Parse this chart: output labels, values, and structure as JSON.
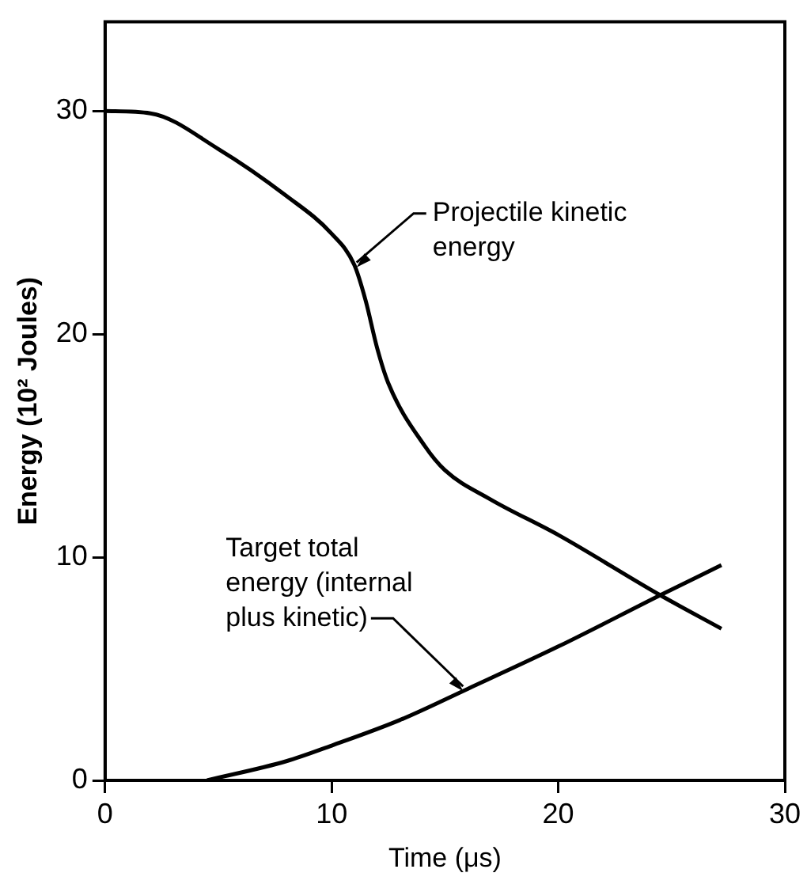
{
  "chart_data": {
    "type": "line",
    "xlabel": "Time (μs)",
    "ylabel": "Energy (10² Joules)",
    "xlim": [
      0,
      30
    ],
    "xticks": [
      0,
      10,
      20,
      30
    ],
    "ylim": [
      0,
      34
    ],
    "yticks": [
      0,
      10,
      20,
      30
    ],
    "grid": false,
    "legend": false,
    "marker": "none",
    "line_style": "solid",
    "series": [
      {
        "color": "#000000",
        "x": [
          0,
          2,
          5,
          8,
          10,
          11,
          11.5,
          12,
          12.5,
          14.1,
          15,
          17,
          20,
          24.5,
          27.2
        ],
        "values": [
          30,
          29.9,
          28.3,
          26.2,
          24.5,
          23.1,
          21.5,
          19.4,
          17.8,
          15.0,
          13.9,
          12.6,
          11.0,
          8.3,
          6.8
        ]
      },
      {
        "color": "#000000",
        "x": [
          4.5,
          8,
          10,
          13,
          16,
          20,
          24.5,
          27.2
        ],
        "values": [
          0,
          0.86,
          1.56,
          2.7,
          4.1,
          6.0,
          8.3,
          9.65
        ]
      }
    ],
    "annotations": [
      {
        "text": "Projectile kinetic\nenergy",
        "x": 11.1,
        "y": 23
      },
      {
        "text": "Target total\nenergy (internal\nplus kinetic)",
        "x": 15.8,
        "y": 4.0
      }
    ]
  }
}
